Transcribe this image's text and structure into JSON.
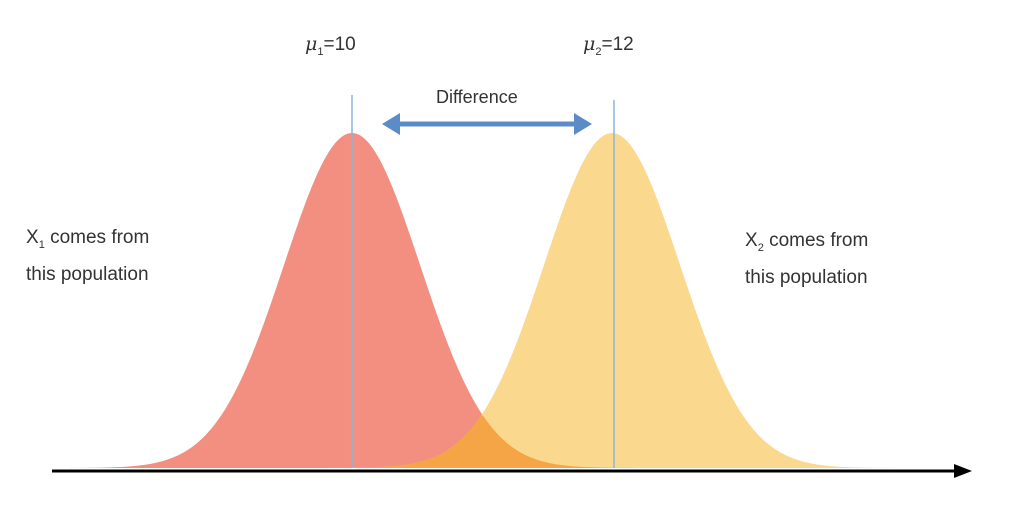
{
  "populations": [
    {
      "id": "x1",
      "mean_label": {
        "symbol": "μ",
        "subscript": "1",
        "value": "=10"
      },
      "sample_label": {
        "var": "X",
        "subscript": "1",
        "line1_rest": " comes from",
        "line2": "this population"
      },
      "mean": 10,
      "color": "#f08070"
    },
    {
      "id": "x2",
      "mean_label": {
        "symbol": "μ",
        "subscript": "2",
        "value": "=12"
      },
      "sample_label": {
        "var": "X",
        "subscript": "2",
        "line1_rest": " comes from",
        "line2": "this population"
      },
      "mean": 12,
      "color": "#f9d27a"
    }
  ],
  "difference_label": "Difference",
  "colors": {
    "mean_line": "#8fb4d8",
    "arrow": "#5b8cc8",
    "axis": "#000000",
    "overlap": "#f4a040",
    "text": "#333333"
  }
}
